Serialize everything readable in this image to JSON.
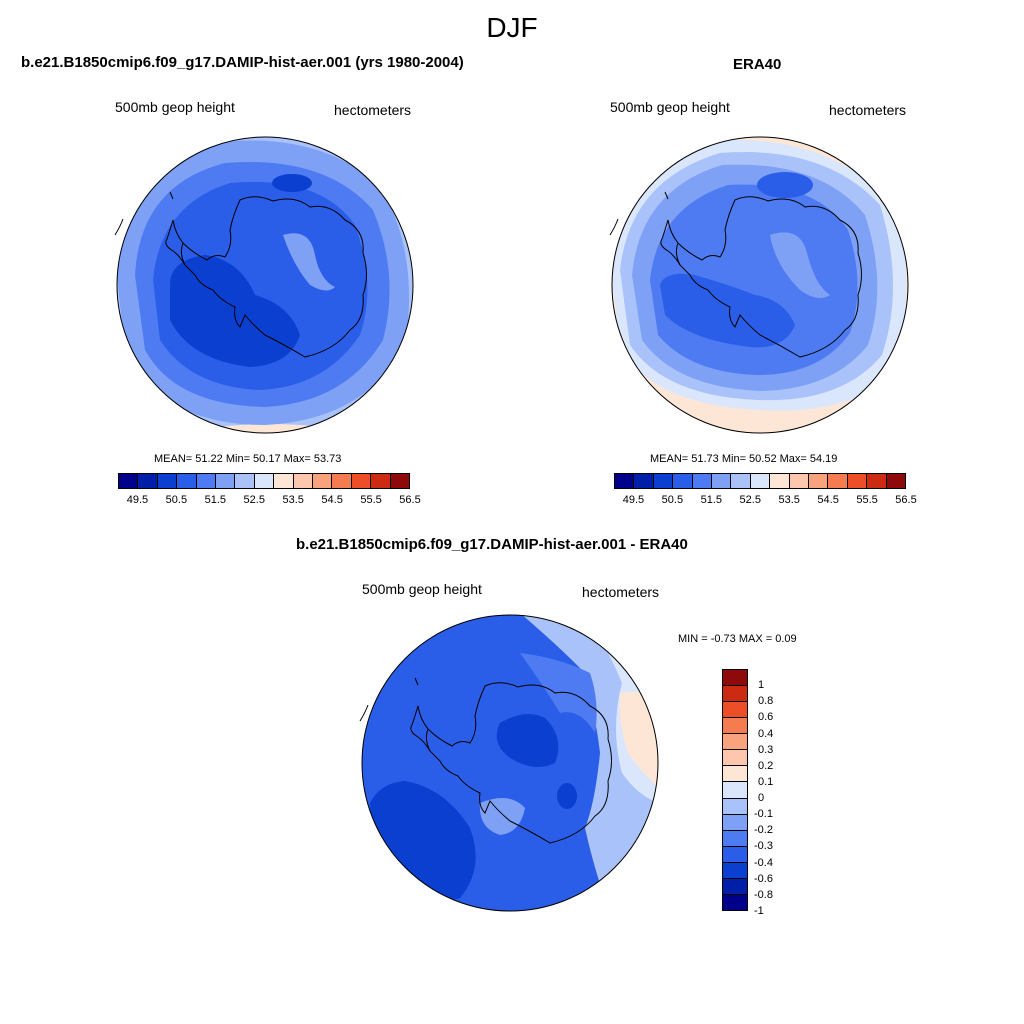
{
  "figure": {
    "title": "DJF",
    "scale_colors": [
      "#00008b",
      "#001fa8",
      "#0a3fcf",
      "#2b5ee8",
      "#4e7bf2",
      "#7ea1f6",
      "#a9c2fa",
      "#d9e6fc",
      "#fee6d6",
      "#fcc7ad",
      "#f9a27e",
      "#f57b51",
      "#ec4f28",
      "#cc2a13",
      "#8e0a0a"
    ],
    "land_outline_color": "#000000"
  },
  "panels": [
    {
      "id": "model",
      "title": "b.e21.B1850cmip6.f09_g17.DAMIP-hist-aer.001 (yrs 1980-2004)",
      "variable": "500mb geop height",
      "units": "hectometers",
      "stats_text": "MEAN=  51.22  Min=  50.17  Max=  53.73",
      "colorbar_labels": [
        "49.5",
        "50.5",
        "51.5",
        "52.5",
        "53.5",
        "54.5",
        "55.5",
        "56.5"
      ]
    },
    {
      "id": "obs",
      "title": "ERA40",
      "variable": "500mb geop height",
      "units": "hectometers",
      "stats_text": "MEAN=  51.73  Min=  50.52  Max=  54.19",
      "colorbar_labels": [
        "49.5",
        "50.5",
        "51.5",
        "52.5",
        "53.5",
        "54.5",
        "55.5",
        "56.5"
      ]
    },
    {
      "id": "diff",
      "title": "b.e21.B1850cmip6.f09_g17.DAMIP-hist-aer.001 - ERA40",
      "variable": "500mb geop height",
      "units": "hectometers",
      "stats_text": "MIN =  -0.73 MAX =   0.09",
      "colorbar_labels": [
        "1",
        "0.8",
        "0.6",
        "0.4",
        "0.3",
        "0.2",
        "0.1",
        "0",
        "-0.1",
        "-0.2",
        "-0.3",
        "-0.4",
        "-0.6",
        "-0.8",
        "-1"
      ]
    }
  ]
}
